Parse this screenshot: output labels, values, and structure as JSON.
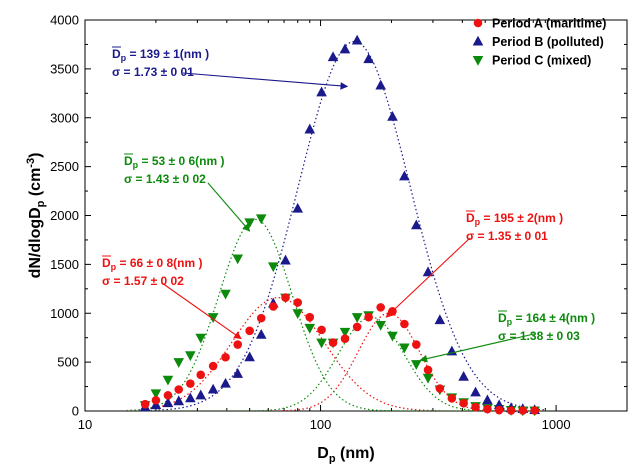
{
  "chart_data": {
    "type": "scatter",
    "xlabel": {
      "main": "D",
      "sub": "p",
      "rest": " (nm)"
    },
    "ylabel": {
      "main": "dN/dlogD",
      "sub": "p",
      "rest": " (cm",
      "sup": "-3",
      "close": ")"
    },
    "x_scale": "log",
    "xlim": [
      10,
      2000
    ],
    "ylim": [
      0,
      4000
    ],
    "x_ticks": [
      10,
      100,
      1000
    ],
    "x_tick_labels": [
      "10",
      "100",
      "1000"
    ],
    "y_ticks": [
      0,
      500,
      1000,
      1500,
      2000,
      2500,
      3000,
      3500,
      4000
    ],
    "y_tick_labels": [
      "0",
      "500",
      "1000",
      "1500",
      "2000",
      "2500",
      "3000",
      "3500",
      "4000"
    ],
    "grid": false,
    "legend_position": "top-right",
    "series": [
      {
        "name": "Period A (maritime)",
        "color": "#ee1111",
        "marker": "circle",
        "x": [
          18,
          20,
          22.5,
          25,
          28,
          31,
          35,
          39.5,
          44.5,
          50,
          56,
          63,
          71,
          80,
          90,
          101,
          113,
          127,
          143,
          160,
          180,
          202,
          227,
          255,
          286,
          321,
          361,
          405,
          455,
          511,
          573,
          644,
          722,
          811
        ],
        "y": [
          70,
          110,
          160,
          220,
          280,
          370,
          460,
          550,
          680,
          820,
          950,
          1070,
          1160,
          1110,
          960,
          830,
          700,
          740,
          860,
          960,
          1060,
          1020,
          890,
          680,
          420,
          230,
          130,
          80,
          40,
          20,
          10,
          5,
          5,
          5
        ]
      },
      {
        "name": "Period B (polluted)",
        "color": "#1a1a8c",
        "marker": "triangle-up",
        "x": [
          18,
          20,
          22.5,
          25,
          28,
          31,
          35,
          39.5,
          44.5,
          50,
          56,
          63,
          71,
          80,
          90,
          101,
          113,
          127,
          143,
          160,
          180,
          202,
          227,
          255,
          286,
          321,
          361,
          405,
          455,
          511,
          573,
          644,
          722,
          811
        ],
        "y": [
          40,
          60,
          80,
          100,
          130,
          160,
          220,
          280,
          380,
          550,
          780,
          1100,
          1540,
          2070,
          2880,
          3260,
          3620,
          3700,
          3790,
          3600,
          3330,
          3010,
          2400,
          1900,
          1420,
          930,
          610,
          350,
          190,
          110,
          60,
          30,
          20,
          10
        ]
      },
      {
        "name": "Period C (mixed)",
        "color": "#0b8a0b",
        "marker": "triangle-down",
        "x": [
          18,
          20,
          22.5,
          25,
          28,
          31,
          35,
          39.5,
          44.5,
          50,
          56,
          63,
          71,
          80,
          90,
          101,
          113,
          127,
          143,
          160,
          180,
          202,
          227,
          255,
          286,
          321,
          361,
          405,
          455,
          511,
          573,
          644,
          722,
          811
        ],
        "y": [
          60,
          180,
          320,
          500,
          570,
          750,
          960,
          1200,
          1560,
          1930,
          1970,
          1480,
          1160,
          1000,
          850,
          700,
          700,
          810,
          960,
          980,
          880,
          770,
          650,
          480,
          340,
          220,
          140,
          90,
          50,
          30,
          20,
          10,
          5,
          5
        ]
      }
    ],
    "fits": [
      {
        "series": "Period A (maritime)",
        "mode": 1,
        "dp": 66,
        "sigma": 1.57,
        "peak": 1160
      },
      {
        "series": "Period A (maritime)",
        "mode": 2,
        "dp": 195,
        "sigma": 1.35,
        "peak": 1000
      },
      {
        "series": "Period B (polluted)",
        "mode": 1,
        "dp": 139,
        "sigma": 1.73,
        "peak": 3780
      },
      {
        "series": "Period C (mixed)",
        "mode": 1,
        "dp": 53,
        "sigma": 1.43,
        "peak": 1960
      },
      {
        "series": "Period C (mixed)",
        "mode": 2,
        "dp": 164,
        "sigma": 1.38,
        "peak": 960
      }
    ],
    "annotations": [
      {
        "color": "#1a1a8c",
        "dp_text": "= 139 ±   1(nm )",
        "sigma_text": "σ = 1.73 ±   0 01",
        "arrow_to": [
          130,
          3320
        ]
      },
      {
        "color": "#0b8a0b",
        "dp_text": "= 53 ±   0 6(nm )",
        "sigma_text": "σ = 1.43 ±   0 02",
        "arrow_to": [
          50,
          1840
        ]
      },
      {
        "color": "#ee1111",
        "dp_text": "= 66 ±   0 8(nm )",
        "sigma_text": "σ = 1.57 ±   0 02",
        "arrow_to": [
          46,
          740
        ]
      },
      {
        "color": "#ee1111",
        "dp_text": "= 195 ±   2(nm )",
        "sigma_text": "σ = 1.35 ±   0 01",
        "arrow_to": [
          190,
          960
        ]
      },
      {
        "color": "#0b8a0b",
        "dp_text": "= 164 ±   4(nm )",
        "sigma_text": "σ = 1.38 ±   0 03",
        "arrow_to": [
          265,
          520
        ]
      }
    ]
  }
}
